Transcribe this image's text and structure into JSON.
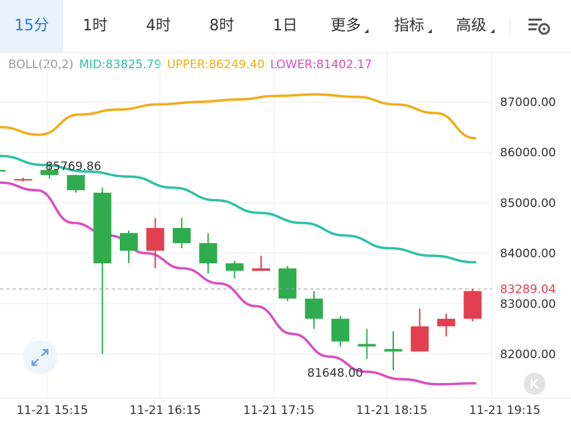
{
  "toolbar": {
    "tabs": [
      {
        "label": "15分",
        "active": true
      },
      {
        "label": "1时"
      },
      {
        "label": "4时"
      },
      {
        "label": "8时"
      },
      {
        "label": "1日"
      },
      {
        "label": "更多",
        "dropdown": true
      },
      {
        "label": "指标",
        "dropdown": true
      },
      {
        "label": "高级",
        "dropdown": true
      }
    ],
    "settings_icon": "chart-settings-icon"
  },
  "legend": {
    "indicator": "BOLL(20,2)",
    "mid": "MID:83825.79",
    "upper": "UPPER:86249.40",
    "lower": "LOWER:81402.17"
  },
  "colors": {
    "mid": "#2fc0a8",
    "upper": "#f0ad1c",
    "lower": "#d94fc0",
    "up": "#e0404f",
    "down": "#2fad4e",
    "price_line": "#9a9a9a",
    "price_label": "#e0404f",
    "grid": "#eeeeee",
    "axis_text": "#333333"
  },
  "chart_data": {
    "type": "candlestick",
    "y_axis": {
      "ticks": [
        82000,
        83000,
        84000,
        85000,
        86000,
        87000
      ],
      "tick_labels": [
        "82000.00",
        "83000.00",
        "84000.00",
        "85000.00",
        "86000.00",
        "87000.00"
      ]
    },
    "x_axis": {
      "tick_labels": [
        "11-21 15:15",
        "11-21 16:15",
        "11-21 17:15",
        "11-21 18:15",
        "11-21 19:15"
      ]
    },
    "current_price": {
      "value": 83289.04,
      "label": "83289.04"
    },
    "annotations": [
      {
        "label": "85769.86",
        "value": 85769.86
      },
      {
        "label": "81648.00",
        "value": 81648.0
      }
    ],
    "candles": [
      {
        "open": 85650,
        "close": 85620,
        "high": 85660,
        "low": 85590
      },
      {
        "open": 85470,
        "close": 85470,
        "high": 85500,
        "low": 85420
      },
      {
        "open": 85650,
        "close": 85550,
        "high": 85780,
        "low": 85480
      },
      {
        "open": 85550,
        "close": 85250,
        "high": 85560,
        "low": 85200
      },
      {
        "open": 85200,
        "close": 83800,
        "high": 85300,
        "low": 82000
      },
      {
        "open": 84400,
        "close": 84050,
        "high": 84450,
        "low": 83800
      },
      {
        "open": 84050,
        "close": 84500,
        "high": 84700,
        "low": 83700
      },
      {
        "open": 84500,
        "close": 84200,
        "high": 84700,
        "low": 84100
      },
      {
        "open": 84200,
        "close": 83800,
        "high": 84400,
        "low": 83600
      },
      {
        "open": 83800,
        "close": 83650,
        "high": 83850,
        "low": 83500
      },
      {
        "open": 83650,
        "close": 83700,
        "high": 83950,
        "low": 83650
      },
      {
        "open": 83700,
        "close": 83100,
        "high": 83750,
        "low": 83050
      },
      {
        "open": 83100,
        "close": 82700,
        "high": 83250,
        "low": 82500
      },
      {
        "open": 82700,
        "close": 82250,
        "high": 82750,
        "low": 82150
      },
      {
        "open": 82200,
        "close": 82150,
        "high": 82500,
        "low": 81900
      },
      {
        "open": 82100,
        "close": 82050,
        "high": 82450,
        "low": 81680
      },
      {
        "open": 82050,
        "close": 82550,
        "high": 82900,
        "low": 82050
      },
      {
        "open": 82550,
        "close": 82700,
        "high": 82800,
        "low": 82350
      },
      {
        "open": 82700,
        "close": 83250,
        "high": 83300,
        "low": 82650
      }
    ],
    "boll_upper": [
      86500,
      86350,
      86750,
      86850,
      86950,
      87000,
      87050,
      87120,
      87150,
      87100,
      86950,
      86780,
      86280
    ],
    "boll_mid": [
      85930,
      85750,
      85620,
      85520,
      85300,
      85050,
      84800,
      84600,
      84350,
      84100,
      83950,
      83820
    ],
    "boll_lower": [
      85400,
      85250,
      84600,
      84350,
      84000,
      83700,
      83400,
      82950,
      82400,
      81950,
      81650,
      81500,
      81400,
      81420
    ]
  }
}
